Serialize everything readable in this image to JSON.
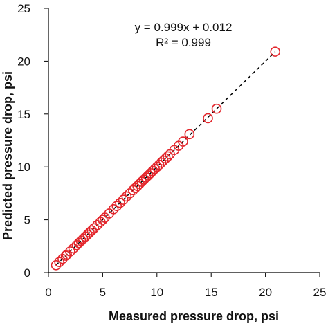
{
  "chart_data": {
    "type": "scatter",
    "title": "",
    "xlabel": "Measured pressure drop, psi",
    "ylabel": "Predicted pressure drop, psi",
    "xlim": [
      0,
      25
    ],
    "ylim": [
      0,
      25
    ],
    "xticks": [
      "0",
      "5",
      "10",
      "15",
      "20",
      "25"
    ],
    "yticks": [
      "0",
      "5",
      "10",
      "15",
      "20",
      "25"
    ],
    "grid": false,
    "legend": "none",
    "annotation": {
      "equation": "y = 0.999x + 0.012",
      "r2": "R² = 0.999"
    },
    "trendline": {
      "slope": 0.999,
      "intercept": 0.012,
      "x_range": [
        0.7,
        20.9
      ],
      "style": "dashed",
      "color": "#000000"
    },
    "marker": {
      "shape": "open-circle",
      "color": "#e3262c"
    },
    "series": [
      {
        "x": [
          0.7,
          1.0,
          1.3,
          1.6,
          1.7,
          2.0,
          2.3,
          2.6,
          2.8,
          3.0,
          3.2,
          3.4,
          3.6,
          3.8,
          4.0,
          4.2,
          4.5,
          4.8,
          5.0,
          5.2,
          5.6,
          6.0,
          6.3,
          6.6,
          6.9,
          7.2,
          7.5,
          7.8,
          8.0,
          8.2,
          8.4,
          8.6,
          8.8,
          9.0,
          9.2,
          9.4,
          9.6,
          9.8,
          10.0,
          10.2,
          10.4,
          10.6,
          10.8,
          11.0,
          11.2,
          11.6,
          12.0,
          12.4,
          13.0,
          14.7,
          15.5,
          20.9
        ],
        "y": [
          0.7,
          1.0,
          1.3,
          1.6,
          1.7,
          2.0,
          2.3,
          2.6,
          2.8,
          3.0,
          3.2,
          3.4,
          3.6,
          3.8,
          4.0,
          4.2,
          4.5,
          4.8,
          5.0,
          5.2,
          5.6,
          6.0,
          6.3,
          6.6,
          6.9,
          7.2,
          7.5,
          7.8,
          8.0,
          8.2,
          8.4,
          8.6,
          8.8,
          9.0,
          9.2,
          9.4,
          9.6,
          9.8,
          10.0,
          10.2,
          10.4,
          10.6,
          10.8,
          11.0,
          11.2,
          11.6,
          12.0,
          12.4,
          13.1,
          14.6,
          15.5,
          20.9
        ]
      }
    ]
  }
}
